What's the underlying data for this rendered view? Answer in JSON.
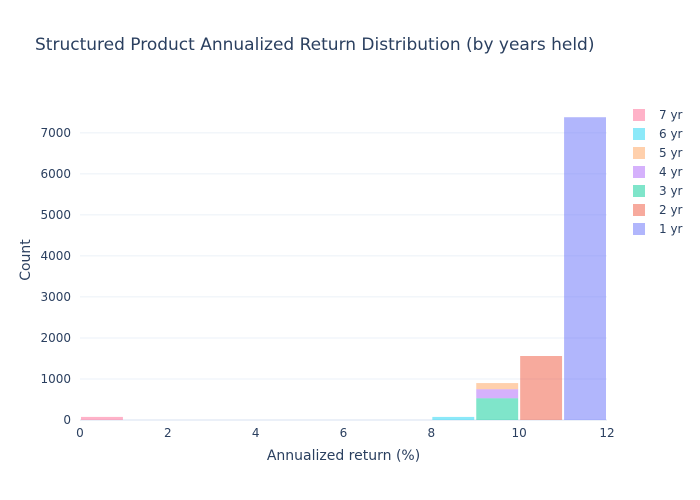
{
  "chart_data": {
    "type": "bar",
    "barmode": "stack",
    "title": "Structured Product Annualized Return Distribution (by years held)",
    "xlabel": "Annualized return (%)",
    "ylabel": "Count",
    "xlim": [
      0,
      12
    ],
    "ylim": [
      0,
      7800
    ],
    "x_ticks": [
      0,
      2,
      4,
      6,
      8,
      10,
      12
    ],
    "y_ticks": [
      0,
      1000,
      2000,
      3000,
      4000,
      5000,
      6000,
      7000
    ],
    "bin_width": 1,
    "legend_position": "right",
    "grid": true,
    "series": [
      {
        "name": "1 yr",
        "color": "#636efa",
        "bins": [
          {
            "x0": 11,
            "x1": 12,
            "value": 7380
          }
        ]
      },
      {
        "name": "2 yr",
        "color": "#EF553B",
        "bins": [
          {
            "x0": 10,
            "x1": 11,
            "value": 1560
          }
        ]
      },
      {
        "name": "3 yr",
        "color": "#00cc96",
        "bins": [
          {
            "x0": 9,
            "x1": 10,
            "value": 530
          }
        ]
      },
      {
        "name": "4 yr",
        "color": "#ab63fa",
        "bins": [
          {
            "x0": 9,
            "x1": 10,
            "value": 220
          }
        ]
      },
      {
        "name": "5 yr",
        "color": "#FFA15A",
        "bins": [
          {
            "x0": 9,
            "x1": 10,
            "value": 150
          }
        ]
      },
      {
        "name": "6 yr",
        "color": "#19d3f3",
        "bins": [
          {
            "x0": 8,
            "x1": 9,
            "value": 75
          }
        ]
      },
      {
        "name": "7 yr",
        "color": "#FF6692",
        "bins": [
          {
            "x0": 0,
            "x1": 1,
            "value": 75
          }
        ]
      }
    ],
    "legend_order": [
      "7 yr",
      "6 yr",
      "5 yr",
      "4 yr",
      "3 yr",
      "2 yr",
      "1 yr"
    ]
  }
}
